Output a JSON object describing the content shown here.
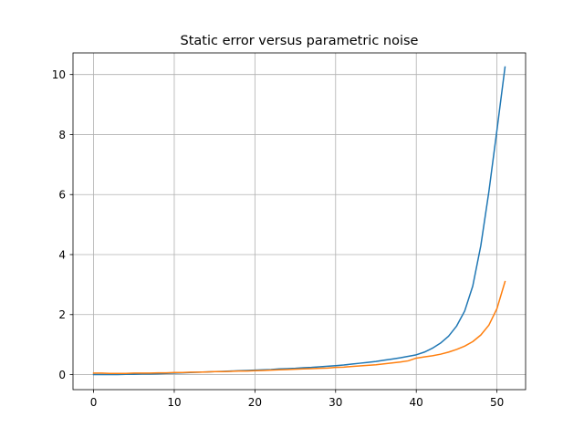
{
  "chart_data": {
    "type": "line",
    "title": "Static error versus parametric noise",
    "xlabel": "",
    "ylabel": "",
    "xlim": [
      -2.55,
      53.55
    ],
    "ylim": [
      -0.5,
      10.72
    ],
    "xticks": [
      0,
      10,
      20,
      30,
      40,
      50
    ],
    "yticks": [
      0,
      2,
      4,
      6,
      8,
      10
    ],
    "grid": true,
    "legend": "none",
    "series": [
      {
        "color": "#1f77b4",
        "x": [
          0,
          1,
          2,
          3,
          4,
          5,
          6,
          7,
          8,
          9,
          10,
          11,
          12,
          13,
          14,
          15,
          16,
          17,
          18,
          19,
          20,
          21,
          22,
          23,
          24,
          25,
          26,
          27,
          28,
          29,
          30,
          31,
          32,
          33,
          34,
          35,
          36,
          37,
          38,
          39,
          40,
          41,
          42,
          43,
          44,
          45,
          46,
          47,
          48,
          49,
          50,
          51
        ],
        "y": [
          0.0,
          0.0,
          0.0,
          0.0,
          0.01,
          0.01,
          0.02,
          0.02,
          0.03,
          0.04,
          0.05,
          0.06,
          0.07,
          0.08,
          0.09,
          0.1,
          0.11,
          0.12,
          0.13,
          0.14,
          0.15,
          0.16,
          0.17,
          0.19,
          0.2,
          0.21,
          0.23,
          0.24,
          0.26,
          0.28,
          0.3,
          0.32,
          0.35,
          0.38,
          0.41,
          0.44,
          0.48,
          0.52,
          0.56,
          0.61,
          0.66,
          0.75,
          0.88,
          1.05,
          1.28,
          1.62,
          2.12,
          2.95,
          4.3,
          6.1,
          8.15,
          10.25
        ]
      },
      {
        "color": "#ff7f0e",
        "x": [
          0,
          1,
          2,
          3,
          4,
          5,
          6,
          7,
          8,
          9,
          10,
          11,
          12,
          13,
          14,
          15,
          16,
          17,
          18,
          19,
          20,
          21,
          22,
          23,
          24,
          25,
          26,
          27,
          28,
          29,
          30,
          31,
          32,
          33,
          34,
          35,
          36,
          37,
          38,
          39,
          40,
          41,
          42,
          43,
          44,
          45,
          46,
          47,
          48,
          49,
          50,
          51
        ],
        "y": [
          0.05,
          0.05,
          0.04,
          0.04,
          0.04,
          0.05,
          0.05,
          0.05,
          0.06,
          0.06,
          0.07,
          0.07,
          0.08,
          0.08,
          0.09,
          0.1,
          0.1,
          0.11,
          0.12,
          0.12,
          0.13,
          0.14,
          0.15,
          0.16,
          0.17,
          0.18,
          0.19,
          0.2,
          0.21,
          0.22,
          0.24,
          0.25,
          0.27,
          0.29,
          0.31,
          0.33,
          0.36,
          0.39,
          0.42,
          0.46,
          0.55,
          0.59,
          0.63,
          0.68,
          0.75,
          0.84,
          0.95,
          1.1,
          1.32,
          1.65,
          2.2,
          3.1
        ]
      }
    ]
  }
}
